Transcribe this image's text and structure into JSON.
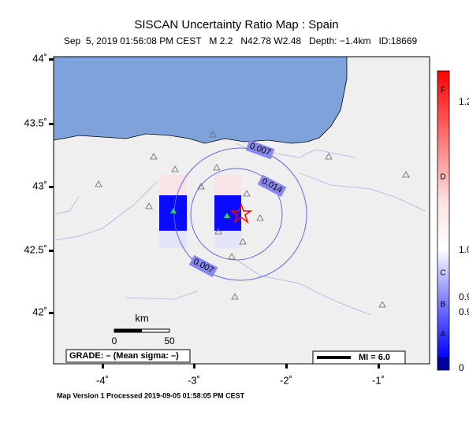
{
  "header": {
    "title": "SISCAN Uncertainty Ratio Map : Spain",
    "subtitle": "Sep  5, 2019 01:56:08 PM CEST   M 2.2   N42.78 W2.48   Depth: −1.4km   ID:18669"
  },
  "map": {
    "lat_labels": [
      "44˚",
      "43.5˚",
      "43˚",
      "42.5˚",
      "42˚"
    ],
    "lon_labels": [
      "-4˚",
      "-3˚",
      "-2˚",
      "-1˚"
    ],
    "contour_labels": [
      "0.007",
      "0.014",
      "0.007"
    ],
    "scale_bar": {
      "unit": "km",
      "start": "0",
      "end": "50"
    },
    "grade": "GRADE: – (Mean sigma: –)",
    "mi_legend": "MI = 6.0"
  },
  "colorbar": {
    "labels": [
      "F",
      "1.2",
      "D",
      "1.0",
      "C",
      "0.9",
      "B",
      "0.9",
      "A",
      "0"
    ]
  },
  "footer": "Map Version 1 Processed 2019-09-05 01:58:05 PM CEST"
}
